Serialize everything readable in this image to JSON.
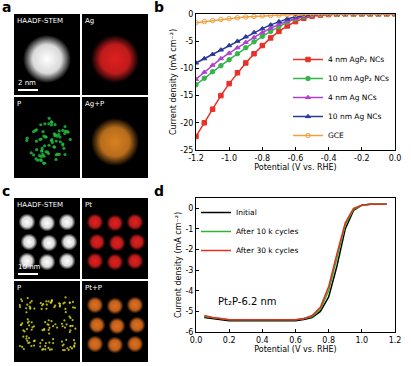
{
  "images": [
    {
      "panel": "a",
      "scale_bar": "2 nm",
      "maps": [
        "HAADF-STEM",
        "Ag",
        "P",
        "Ag+P"
      ]
    },
    {
      "panel": "c",
      "scale_bar": "10 nm",
      "maps": [
        "HAADF-STEM",
        "Pt",
        "P",
        "Pt+P"
      ]
    }
  ],
  "chart_data": [
    {
      "type": "line",
      "panel": "b",
      "x_label": "Potential (V vs. RHE)",
      "y_label": "Current density (mA cm⁻²)",
      "x": [
        -1.2,
        -1.15,
        -1.1,
        -1.05,
        -1.0,
        -0.95,
        -0.9,
        -0.85,
        -0.8,
        -0.75,
        -0.7,
        -0.65,
        -0.6,
        -0.55,
        -0.5,
        -0.45,
        -0.4,
        -0.35,
        -0.3,
        -0.25,
        -0.2,
        -0.15,
        -0.1,
        -0.05,
        0
      ],
      "xlim": [
        -1.2,
        0
      ],
      "xticks": [
        -1.2,
        {
          "value": -1.0,
          "label": "-1.0"
        },
        -0.8,
        -0.6,
        -0.4,
        -0.2,
        {
          "value": 0,
          "label": "0.0"
        }
      ],
      "ylim": [
        -25,
        0
      ],
      "yticks": [
        -25,
        -20,
        -15,
        -10,
        -5,
        0
      ],
      "grid": false,
      "legend": "lower right",
      "series": [
        {
          "name": "4 nm AgP₂ NCs",
          "color": "#e8302a",
          "marker": "square",
          "line_style": "solid",
          "values": [
            -22.5,
            -20,
            -17.5,
            -15,
            -12.8,
            -10.8,
            -9,
            -7.3,
            -5.8,
            -4.4,
            -3.2,
            -2.2,
            -1.4,
            -0.8,
            -0.4,
            -0.2,
            -0.1,
            -0.05,
            0,
            0,
            0,
            0,
            0,
            0,
            0
          ]
        },
        {
          "name": "10 nm AgP₂ NCs",
          "color": "#35b44a",
          "marker": "circle",
          "line_style": "solid",
          "values": [
            -13,
            -11.8,
            -10.6,
            -9.5,
            -8.4,
            -7.3,
            -6.2,
            -5.1,
            -4.1,
            -3.2,
            -2.3,
            -1.5,
            -0.9,
            -0.5,
            -0.2,
            -0.1,
            -0.05,
            0,
            0,
            0,
            0,
            0,
            0,
            0,
            0
          ]
        },
        {
          "name": "4 nm Ag NCs",
          "color": "#b040d0",
          "marker": "triangle-up",
          "line_style": "solid",
          "values": [
            -12,
            -10.7,
            -9.4,
            -8.2,
            -7.2,
            -6.2,
            -5.2,
            -4.3,
            -3.4,
            -2.6,
            -1.9,
            -1.3,
            -0.8,
            -0.4,
            -0.2,
            -0.1,
            0,
            0,
            0,
            0,
            0,
            0,
            0,
            0,
            0
          ]
        },
        {
          "name": "10 nm Ag NCs",
          "color": "#2a3a9a",
          "marker": "triangle-up",
          "line_style": "solid",
          "values": [
            -9,
            -8.2,
            -7.4,
            -6.6,
            -5.8,
            -5,
            -4.2,
            -3.4,
            -2.7,
            -2,
            -1.4,
            -0.9,
            -0.5,
            -0.3,
            -0.1,
            0,
            0,
            0,
            0,
            0,
            0,
            0,
            0,
            0,
            0
          ]
        },
        {
          "name": "GCE",
          "color": "#f0a040",
          "marker": "circle-open",
          "line_style": "solid",
          "values": [
            -1.6,
            -1.4,
            -1.2,
            -1,
            -0.85,
            -0.7,
            -0.55,
            -0.45,
            -0.35,
            -0.25,
            -0.2,
            -0.15,
            -0.1,
            -0.05,
            0,
            0,
            0,
            0,
            0,
            0,
            0,
            0,
            0,
            0,
            0
          ]
        }
      ]
    },
    {
      "type": "line",
      "panel": "d",
      "x_label": "Potential (V vs. RHE)",
      "y_label": "Current density (mA cm⁻²)",
      "x": [
        0.05,
        0.1,
        0.15,
        0.2,
        0.25,
        0.3,
        0.35,
        0.4,
        0.45,
        0.5,
        0.55,
        0.6,
        0.65,
        0.7,
        0.75,
        0.8,
        0.85,
        0.9,
        0.95,
        1.0,
        1.05,
        1.1,
        1.15
      ],
      "xlim": [
        0,
        1.2
      ],
      "xticks": [
        {
          "value": 0,
          "label": "0.0"
        },
        0.2,
        0.4,
        0.6,
        0.8,
        {
          "value": 1,
          "label": "1.0"
        },
        1.2
      ],
      "ylim": [
        -6,
        0.5
      ],
      "yticks": [
        -6,
        -5,
        -4,
        -3,
        -2,
        -1,
        0
      ],
      "grid": false,
      "legend": "upper left",
      "annotations": [
        {
          "text": "Pt₂P-6.2 nm",
          "x": 0.12,
          "y": -4.5
        }
      ],
      "series": [
        {
          "name": "Initial",
          "color": "#000000",
          "line_style": "solid",
          "values": [
            -5.3,
            -5.35,
            -5.4,
            -5.45,
            -5.45,
            -5.45,
            -5.45,
            -5.45,
            -5.45,
            -5.45,
            -5.45,
            -5.45,
            -5.4,
            -5.3,
            -5.0,
            -4.3,
            -2.8,
            -1.0,
            -0.1,
            0.15,
            0.2,
            0.2,
            0.2
          ]
        },
        {
          "name": "After 10 k cycles",
          "color": "#2db52d",
          "line_style": "solid",
          "values": [
            -5.25,
            -5.3,
            -5.35,
            -5.4,
            -5.4,
            -5.4,
            -5.4,
            -5.4,
            -5.4,
            -5.4,
            -5.4,
            -5.4,
            -5.35,
            -5.25,
            -4.9,
            -4.0,
            -2.4,
            -0.8,
            -0.05,
            0.15,
            0.2,
            0.2,
            0.2
          ]
        },
        {
          "name": "After 30 k cycles",
          "color": "#e0301e",
          "line_style": "solid",
          "values": [
            -5.2,
            -5.3,
            -5.35,
            -5.4,
            -5.4,
            -5.4,
            -5.4,
            -5.4,
            -5.4,
            -5.4,
            -5.4,
            -5.4,
            -5.35,
            -5.2,
            -4.8,
            -3.8,
            -2.2,
            -0.7,
            0,
            0.15,
            0.2,
            0.2,
            0.2
          ]
        }
      ]
    }
  ]
}
